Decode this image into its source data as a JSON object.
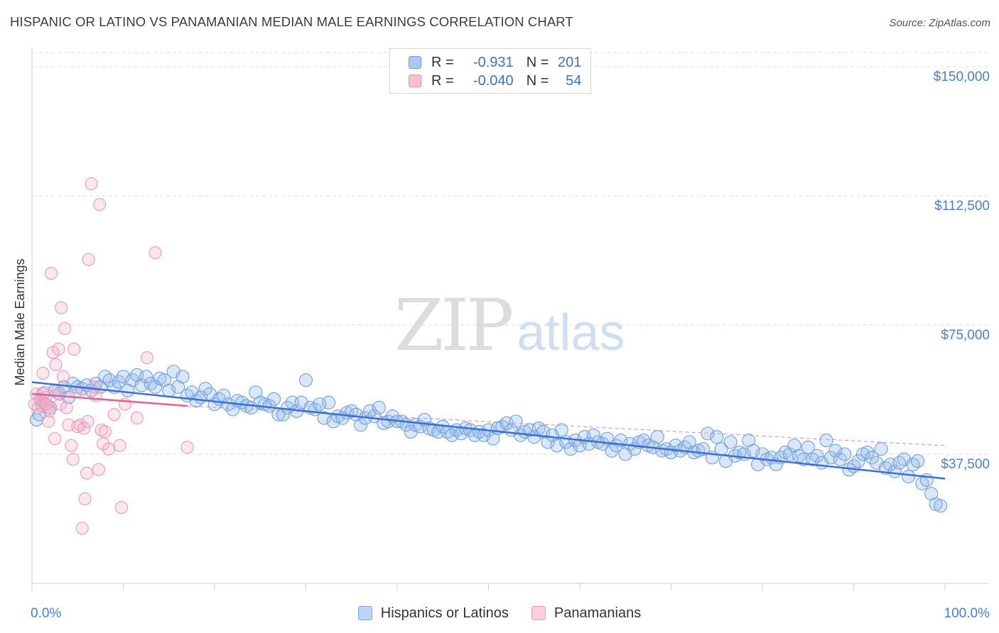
{
  "title": "HISPANIC OR LATINO VS PANAMANIAN MEDIAN MALE EARNINGS CORRELATION CHART",
  "source": "Source: ZipAtlas.com",
  "watermark": {
    "zip": "ZIP",
    "atlas": "atlas"
  },
  "legend": {
    "rows": [
      {
        "r_label": "R =",
        "r_value": "-0.931",
        "n_label": "N =",
        "n_value": "201",
        "color": "#a9c8f2",
        "border": "#6f9fe0"
      },
      {
        "r_label": "R =",
        "r_value": "-0.040",
        "n_label": "N =",
        "n_value": "54",
        "color": "#f7bfd0",
        "border": "#ea8fae"
      }
    ]
  },
  "bottom_legend": [
    {
      "label": "Hispanics or Latinos",
      "color": "#bcd5f5",
      "border": "#7aa7e3"
    },
    {
      "label": "Panamanians",
      "color": "#fad0dc",
      "border": "#ec9bb6"
    }
  ],
  "colors": {
    "blue_fill": "rgba(150,186,236,0.35)",
    "blue_stroke": "#6e9fe0",
    "blue_line": "#3d6fd1",
    "pink_fill": "rgba(245,175,198,0.30)",
    "pink_stroke": "#eb9ab5",
    "pink_line": "#e8608c",
    "grid": "#dedede"
  },
  "chart_data": {
    "type": "scatter",
    "title": "HISPANIC OR LATINO VS PANAMANIAN MEDIAN MALE EARNINGS CORRELATION CHART",
    "xlabel": "",
    "ylabel": "Median Male Earnings",
    "xlim": [
      0,
      100
    ],
    "ylim": [
      0,
      157000
    ],
    "x_tick_labels": [
      "0.0%",
      "100.0%"
    ],
    "y_ticks": [
      37500,
      75000,
      112500,
      150000
    ],
    "y_tick_labels": [
      "$37,500",
      "$75,000",
      "$112,500",
      "$150,000"
    ],
    "grid": true,
    "series": [
      {
        "name": "Hispanics or Latinos",
        "r": -0.931,
        "n": 201,
        "trend": {
          "x": [
            0,
            100
          ],
          "y": [
            58400,
            30400
          ]
        },
        "points": [
          [
            0.5,
            47500
          ],
          [
            0.8,
            49000
          ],
          [
            1,
            53000
          ],
          [
            1.2,
            55000
          ],
          [
            1.5,
            52000
          ],
          [
            2,
            51000
          ],
          [
            2.5,
            56000
          ],
          [
            3,
            55000
          ],
          [
            3.5,
            57000
          ],
          [
            4,
            54000
          ],
          [
            4.5,
            58000
          ],
          [
            5,
            57000
          ],
          [
            5.5,
            56500
          ],
          [
            6,
            57500
          ],
          [
            6.5,
            56000
          ],
          [
            7,
            58000
          ],
          [
            7.5,
            57000
          ],
          [
            8,
            60000
          ],
          [
            8.5,
            59000
          ],
          [
            9,
            57000
          ],
          [
            9.5,
            58500
          ],
          [
            10,
            60000
          ],
          [
            10.5,
            56000
          ],
          [
            11,
            59000
          ],
          [
            11.5,
            60500
          ],
          [
            12,
            57500
          ],
          [
            12.5,
            60000
          ],
          [
            13,
            58000
          ],
          [
            13.5,
            57000
          ],
          [
            14,
            59500
          ],
          [
            14.5,
            59000
          ],
          [
            15,
            56000
          ],
          [
            15.5,
            61500
          ],
          [
            16,
            57000
          ],
          [
            16.5,
            60000
          ],
          [
            17,
            54500
          ],
          [
            17.5,
            55500
          ],
          [
            18,
            53000
          ],
          [
            18.5,
            54000
          ],
          [
            19,
            56500
          ],
          [
            19.5,
            55000
          ],
          [
            20,
            52000
          ],
          [
            20.5,
            53500
          ],
          [
            21,
            54500
          ],
          [
            21.5,
            52000
          ],
          [
            22,
            50500
          ],
          [
            22.5,
            53000
          ],
          [
            23,
            52500
          ],
          [
            23.5,
            51500
          ],
          [
            24,
            51000
          ],
          [
            24.5,
            55500
          ],
          [
            25,
            52500
          ],
          [
            25.5,
            52000
          ],
          [
            26,
            51500
          ],
          [
            26.5,
            53500
          ],
          [
            27,
            49000
          ],
          [
            27.5,
            49000
          ],
          [
            28,
            51000
          ],
          [
            28.5,
            52500
          ],
          [
            29,
            50000
          ],
          [
            29.5,
            52500
          ],
          [
            30,
            59000
          ],
          [
            30.5,
            51000
          ],
          [
            31,
            50500
          ],
          [
            31.5,
            52000
          ],
          [
            32,
            48000
          ],
          [
            32.5,
            52500
          ],
          [
            33,
            47000
          ],
          [
            33.5,
            48500
          ],
          [
            34,
            48000
          ],
          [
            34.5,
            49500
          ],
          [
            35,
            50000
          ],
          [
            35.5,
            49000
          ],
          [
            36,
            46000
          ],
          [
            36.5,
            48000
          ],
          [
            37,
            50000
          ],
          [
            37.5,
            48500
          ],
          [
            38,
            51000
          ],
          [
            38.5,
            46500
          ],
          [
            39,
            47000
          ],
          [
            39.5,
            48500
          ],
          [
            40,
            47000
          ],
          [
            40.5,
            47000
          ],
          [
            41,
            46000
          ],
          [
            41.5,
            44000
          ],
          [
            42,
            46000
          ],
          [
            42.5,
            45500
          ],
          [
            43,
            47500
          ],
          [
            43.5,
            45000
          ],
          [
            44,
            44500
          ],
          [
            44.5,
            44000
          ],
          [
            45,
            45500
          ],
          [
            45.5,
            44000
          ],
          [
            46,
            43000
          ],
          [
            46.5,
            44500
          ],
          [
            47,
            43500
          ],
          [
            47.5,
            45000
          ],
          [
            48,
            44500
          ],
          [
            48.5,
            43000
          ],
          [
            49,
            44000
          ],
          [
            49.5,
            43000
          ],
          [
            50,
            44500
          ],
          [
            50.5,
            42000
          ],
          [
            51,
            45000
          ],
          [
            51.5,
            45500
          ],
          [
            52,
            46500
          ],
          [
            52.5,
            44500
          ],
          [
            53,
            47000
          ],
          [
            53.5,
            43000
          ],
          [
            54,
            44000
          ],
          [
            54.5,
            44500
          ],
          [
            55,
            42500
          ],
          [
            55.5,
            45000
          ],
          [
            56,
            44000
          ],
          [
            56.5,
            41000
          ],
          [
            57,
            43000
          ],
          [
            57.5,
            40000
          ],
          [
            58,
            44500
          ],
          [
            58.5,
            41000
          ],
          [
            59,
            39000
          ],
          [
            59.5,
            41500
          ],
          [
            60,
            40000
          ],
          [
            60.5,
            42500
          ],
          [
            61,
            40500
          ],
          [
            61.5,
            43000
          ],
          [
            62,
            41000
          ],
          [
            62.5,
            40500
          ],
          [
            63,
            42000
          ],
          [
            63.5,
            38500
          ],
          [
            64,
            40000
          ],
          [
            64.5,
            41500
          ],
          [
            65,
            37500
          ],
          [
            65.5,
            40500
          ],
          [
            66,
            39000
          ],
          [
            66.5,
            41000
          ],
          [
            67,
            41500
          ],
          [
            67.5,
            40000
          ],
          [
            68,
            39500
          ],
          [
            68.5,
            42500
          ],
          [
            69,
            38500
          ],
          [
            69.5,
            39000
          ],
          [
            70,
            38000
          ],
          [
            70.5,
            40000
          ],
          [
            71,
            38500
          ],
          [
            71.5,
            39500
          ],
          [
            72,
            41000
          ],
          [
            72.5,
            38000
          ],
          [
            73,
            38500
          ],
          [
            73.5,
            39000
          ],
          [
            74,
            43500
          ],
          [
            74.5,
            36500
          ],
          [
            75,
            42500
          ],
          [
            75.5,
            39000
          ],
          [
            76,
            35500
          ],
          [
            76.5,
            41000
          ],
          [
            77,
            37000
          ],
          [
            77.5,
            38000
          ],
          [
            78,
            37500
          ],
          [
            78.5,
            41500
          ],
          [
            79,
            38500
          ],
          [
            79.5,
            34500
          ],
          [
            80,
            37500
          ],
          [
            80.5,
            36000
          ],
          [
            81,
            36500
          ],
          [
            81.5,
            34500
          ],
          [
            82,
            36500
          ],
          [
            82.5,
            38000
          ],
          [
            83,
            37500
          ],
          [
            83.5,
            40000
          ],
          [
            84,
            37000
          ],
          [
            84.5,
            36000
          ],
          [
            85,
            39500
          ],
          [
            85.5,
            36000
          ],
          [
            86,
            37000
          ],
          [
            86.5,
            35000
          ],
          [
            87,
            41500
          ],
          [
            87.5,
            36500
          ],
          [
            88,
            38500
          ],
          [
            88.5,
            36000
          ],
          [
            89,
            37500
          ],
          [
            89.5,
            33000
          ],
          [
            90,
            34000
          ],
          [
            90.5,
            35500
          ],
          [
            91,
            37500
          ],
          [
            91.5,
            38000
          ],
          [
            92,
            36500
          ],
          [
            92.5,
            35000
          ],
          [
            93,
            39000
          ],
          [
            93.5,
            33500
          ],
          [
            94,
            34500
          ],
          [
            94.5,
            32500
          ],
          [
            95,
            35000
          ],
          [
            95.5,
            36000
          ],
          [
            96,
            31000
          ],
          [
            96.5,
            34500
          ],
          [
            97,
            35500
          ],
          [
            97.5,
            29000
          ],
          [
            98,
            30000
          ],
          [
            98.5,
            26000
          ],
          [
            99,
            23000
          ],
          [
            99.5,
            22500
          ]
        ]
      },
      {
        "name": "Panamanians",
        "r": -0.04,
        "n": 54,
        "trend": {
          "x": [
            0,
            17
          ],
          "y": [
            55000,
            51500
          ]
        },
        "trend_extension": {
          "x": [
            17,
            100
          ],
          "y": [
            51500,
            40000
          ]
        },
        "points": [
          [
            0.3,
            52000
          ],
          [
            0.5,
            55000
          ],
          [
            0.7,
            51000
          ],
          [
            0.9,
            53500
          ],
          [
            1.1,
            51500
          ],
          [
            1.3,
            52500
          ],
          [
            1.5,
            54000
          ],
          [
            1.7,
            51000
          ],
          [
            1.9,
            50000
          ],
          [
            1.6,
            52000
          ],
          [
            1.2,
            61000
          ],
          [
            1.4,
            55500
          ],
          [
            1.8,
            47000
          ],
          [
            2.1,
            90000
          ],
          [
            2.3,
            67000
          ],
          [
            2.5,
            42000
          ],
          [
            2.6,
            63500
          ],
          [
            2.8,
            56000
          ],
          [
            2.9,
            68000
          ],
          [
            3.1,
            52000
          ],
          [
            3.2,
            80000
          ],
          [
            3.4,
            60000
          ],
          [
            3.6,
            74000
          ],
          [
            3.8,
            51000
          ],
          [
            4,
            46000
          ],
          [
            4.3,
            40000
          ],
          [
            4.5,
            36000
          ],
          [
            4.6,
            68000
          ],
          [
            4.8,
            55500
          ],
          [
            5,
            45500
          ],
          [
            5.3,
            46000
          ],
          [
            5.5,
            16000
          ],
          [
            5.7,
            45000
          ],
          [
            5.8,
            24500
          ],
          [
            6,
            32000
          ],
          [
            6.1,
            47000
          ],
          [
            6.2,
            94000
          ],
          [
            6.5,
            116000
          ],
          [
            6.8,
            57000
          ],
          [
            7,
            54500
          ],
          [
            7.3,
            33000
          ],
          [
            7.4,
            110000
          ],
          [
            7.6,
            44500
          ],
          [
            7.8,
            40500
          ],
          [
            8,
            44000
          ],
          [
            8.4,
            39000
          ],
          [
            9,
            49000
          ],
          [
            9.6,
            40000
          ],
          [
            9.8,
            22000
          ],
          [
            10.2,
            52000
          ],
          [
            11.5,
            48000
          ],
          [
            12.6,
            65500
          ],
          [
            13.5,
            96000
          ],
          [
            17,
            39500
          ]
        ]
      }
    ]
  }
}
